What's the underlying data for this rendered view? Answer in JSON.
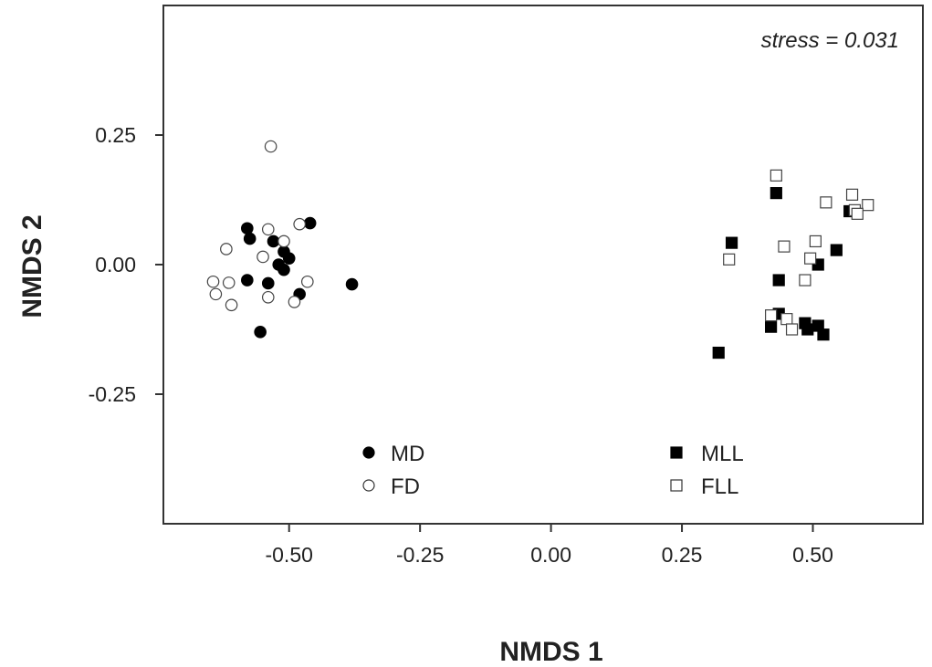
{
  "chart_data": {
    "type": "scatter",
    "xlabel": "NMDS 1",
    "ylabel": "NMDS 2",
    "annotation": "stress = 0.031",
    "xlim": [
      -0.74,
      0.71
    ],
    "ylim": [
      -0.5,
      0.5
    ],
    "xticks": [
      -0.5,
      -0.25,
      0.0,
      0.25,
      0.5
    ],
    "xtick_labels": [
      "-0.50",
      "-0.25",
      "0.00",
      "0.25",
      "0.50"
    ],
    "yticks": [
      -0.25,
      0.0,
      0.25
    ],
    "ytick_labels": [
      "-0.25",
      "0.00",
      "0.25"
    ],
    "grid": false,
    "legend": {
      "placement": "bottom-center"
    },
    "series": [
      {
        "name": "MD",
        "marker": "circle",
        "fill": "#000000",
        "points": [
          [
            -0.58,
            0.07
          ],
          [
            -0.575,
            0.05
          ],
          [
            -0.53,
            0.045
          ],
          [
            -0.51,
            0.025
          ],
          [
            -0.5,
            0.012
          ],
          [
            -0.46,
            0.08
          ],
          [
            -0.52,
            0.0
          ],
          [
            -0.51,
            -0.01
          ],
          [
            -0.58,
            -0.03
          ],
          [
            -0.54,
            -0.036
          ],
          [
            -0.48,
            -0.057
          ],
          [
            -0.38,
            -0.038
          ],
          [
            -0.555,
            -0.13
          ]
        ]
      },
      {
        "name": "FD",
        "marker": "circle",
        "fill": "#ffffff",
        "points": [
          [
            -0.535,
            0.228
          ],
          [
            -0.54,
            0.068
          ],
          [
            -0.48,
            0.078
          ],
          [
            -0.51,
            0.045
          ],
          [
            -0.62,
            0.03
          ],
          [
            -0.55,
            0.015
          ],
          [
            -0.645,
            -0.033
          ],
          [
            -0.615,
            -0.035
          ],
          [
            -0.64,
            -0.057
          ],
          [
            -0.61,
            -0.078
          ],
          [
            -0.54,
            -0.063
          ],
          [
            -0.49,
            -0.072
          ],
          [
            -0.465,
            -0.033
          ]
        ]
      },
      {
        "name": "MLL",
        "marker": "square",
        "fill": "#000000",
        "points": [
          [
            0.43,
            0.138
          ],
          [
            0.57,
            0.103
          ],
          [
            0.345,
            0.042
          ],
          [
            0.545,
            0.028
          ],
          [
            0.51,
            0.0
          ],
          [
            0.435,
            -0.03
          ],
          [
            0.435,
            -0.095
          ],
          [
            0.42,
            -0.12
          ],
          [
            0.485,
            -0.113
          ],
          [
            0.49,
            -0.125
          ],
          [
            0.51,
            -0.118
          ],
          [
            0.52,
            -0.135
          ],
          [
            0.32,
            -0.17
          ]
        ]
      },
      {
        "name": "FLL",
        "marker": "square",
        "fill": "#ffffff",
        "points": [
          [
            0.43,
            0.172
          ],
          [
            0.525,
            0.12
          ],
          [
            0.575,
            0.135
          ],
          [
            0.605,
            0.115
          ],
          [
            0.58,
            0.105
          ],
          [
            0.585,
            0.098
          ],
          [
            0.505,
            0.045
          ],
          [
            0.445,
            0.035
          ],
          [
            0.495,
            0.012
          ],
          [
            0.34,
            0.01
          ],
          [
            0.485,
            -0.03
          ],
          [
            0.42,
            -0.098
          ],
          [
            0.45,
            -0.105
          ],
          [
            0.46,
            -0.125
          ]
        ]
      }
    ]
  }
}
